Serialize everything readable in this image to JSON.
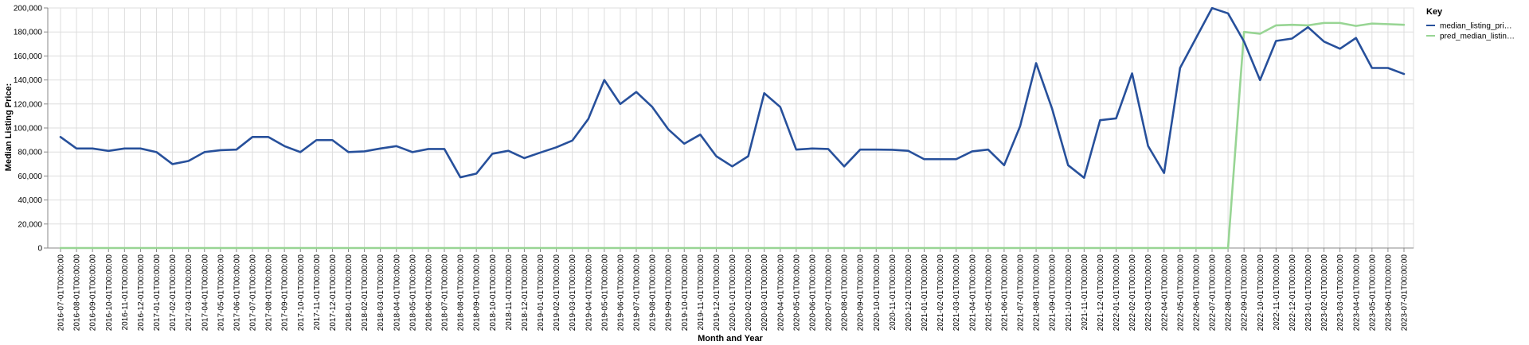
{
  "chart_data": {
    "type": "line",
    "xlabel": "Month and Year",
    "ylabel": "Median Listing Price:",
    "ylim": [
      0,
      200000
    ],
    "y_ticks": [
      0,
      20000,
      40000,
      60000,
      80000,
      100000,
      120000,
      140000,
      160000,
      180000,
      200000
    ],
    "y_tick_labels": [
      "0",
      "20,000",
      "40,000",
      "60,000",
      "80,000",
      "100,000",
      "120,000",
      "140,000",
      "160,000",
      "180,000",
      "200,000"
    ],
    "grid": true,
    "legend": {
      "title": "Key",
      "placement": "top-right"
    },
    "x": [
      "2016-07-01T00:00:00",
      "2016-08-01T00:00:00",
      "2016-09-01T00:00:00",
      "2016-10-01T00:00:00",
      "2016-11-01T00:00:00",
      "2016-12-01T00:00:00",
      "2017-01-01T00:00:00",
      "2017-02-01T00:00:00",
      "2017-03-01T00:00:00",
      "2017-04-01T00:00:00",
      "2017-05-01T00:00:00",
      "2017-06-01T00:00:00",
      "2017-07-01T00:00:00",
      "2017-08-01T00:00:00",
      "2017-09-01T00:00:00",
      "2017-10-01T00:00:00",
      "2017-11-01T00:00:00",
      "2017-12-01T00:00:00",
      "2018-01-01T00:00:00",
      "2018-02-01T00:00:00",
      "2018-03-01T00:00:00",
      "2018-04-01T00:00:00",
      "2018-05-01T00:00:00",
      "2018-06-01T00:00:00",
      "2018-07-01T00:00:00",
      "2018-08-01T00:00:00",
      "2018-09-01T00:00:00",
      "2018-10-01T00:00:00",
      "2018-11-01T00:00:00",
      "2018-12-01T00:00:00",
      "2019-01-01T00:00:00",
      "2019-02-01T00:00:00",
      "2019-03-01T00:00:00",
      "2019-04-01T00:00:00",
      "2019-05-01T00:00:00",
      "2019-06-01T00:00:00",
      "2019-07-01T00:00:00",
      "2019-08-01T00:00:00",
      "2019-09-01T00:00:00",
      "2019-10-01T00:00:00",
      "2019-11-01T00:00:00",
      "2019-12-01T00:00:00",
      "2020-01-01T00:00:00",
      "2020-02-01T00:00:00",
      "2020-03-01T00:00:00",
      "2020-04-01T00:00:00",
      "2020-05-01T00:00:00",
      "2020-06-01T00:00:00",
      "2020-07-01T00:00:00",
      "2020-08-01T00:00:00",
      "2020-09-01T00:00:00",
      "2020-10-01T00:00:00",
      "2020-11-01T00:00:00",
      "2020-12-01T00:00:00",
      "2021-01-01T00:00:00",
      "2021-02-01T00:00:00",
      "2021-03-01T00:00:00",
      "2021-04-01T00:00:00",
      "2021-05-01T00:00:00",
      "2021-06-01T00:00:00",
      "2021-07-01T00:00:00",
      "2021-08-01T00:00:00",
      "2021-09-01T00:00:00",
      "2021-10-01T00:00:00",
      "2021-11-01T00:00:00",
      "2021-12-01T00:00:00",
      "2022-01-01T00:00:00",
      "2022-02-01T00:00:00",
      "2022-03-01T00:00:00",
      "2022-04-01T00:00:00",
      "2022-05-01T00:00:00",
      "2022-06-01T00:00:00",
      "2022-07-01T00:00:00",
      "2022-08-01T00:00:00",
      "2022-09-01T00:00:00",
      "2022-10-01T00:00:00",
      "2022-11-01T00:00:00",
      "2022-12-01T00:00:00",
      "2023-01-01T00:00:00",
      "2023-02-01T00:00:00",
      "2023-03-01T00:00:00",
      "2023-04-01T00:00:00",
      "2023-05-01T00:00:00",
      "2023-06-01T00:00:00",
      "2023-07-01T00:00:00"
    ],
    "series": [
      {
        "name": "median_listing_pri…",
        "color": "#27509b",
        "values": [
          92500,
          82900,
          82900,
          80900,
          82900,
          82900,
          79900,
          69900,
          72500,
          79900,
          81500,
          82000,
          92500,
          92500,
          84900,
          79900,
          89900,
          89900,
          79900,
          80500,
          82900,
          84900,
          79900,
          82500,
          82500,
          58900,
          62000,
          78500,
          81000,
          74900,
          79500,
          83900,
          89500,
          107500,
          140000,
          120000,
          130000,
          117500,
          98900,
          86900,
          94500,
          76500,
          68000,
          76500,
          129000,
          117500,
          82000,
          82900,
          82500,
          68000,
          82000,
          82000,
          81800,
          81000,
          74000,
          74000,
          74000,
          80500,
          82000,
          69000,
          101500,
          154000,
          116000,
          69000,
          58500,
          106500,
          108000,
          145500,
          85000,
          62500,
          150000,
          175000,
          199900,
          195500,
          172000,
          139900,
          172500,
          174500,
          184000,
          172000,
          166000,
          175000,
          150000,
          150000,
          145000
        ]
      },
      {
        "name": "pred_median_listin…",
        "color": "#98d594",
        "values": [
          0,
          0,
          0,
          0,
          0,
          0,
          0,
          0,
          0,
          0,
          0,
          0,
          0,
          0,
          0,
          0,
          0,
          0,
          0,
          0,
          0,
          0,
          0,
          0,
          0,
          0,
          0,
          0,
          0,
          0,
          0,
          0,
          0,
          0,
          0,
          0,
          0,
          0,
          0,
          0,
          0,
          0,
          0,
          0,
          0,
          0,
          0,
          0,
          0,
          0,
          0,
          0,
          0,
          0,
          0,
          0,
          0,
          0,
          0,
          0,
          0,
          0,
          0,
          0,
          0,
          0,
          0,
          0,
          0,
          0,
          0,
          0,
          0,
          0,
          180000,
          178500,
          185500,
          186000,
          185500,
          187500,
          187500,
          185000,
          187000,
          186500,
          186000
        ]
      }
    ]
  }
}
